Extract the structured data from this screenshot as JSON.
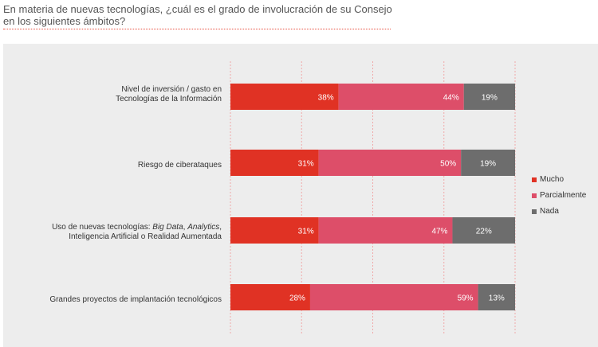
{
  "header": {
    "title": "En materia de nuevas tecnologías, ¿cuál es el grado de involucración de su Consejo en los siguientes ámbitos?"
  },
  "chart_data": {
    "type": "bar",
    "orientation": "horizontal",
    "stacked": true,
    "title": "En materia de nuevas tecnologías, ¿cuál es el grado de involucración de su Consejo en los siguientes ámbitos?",
    "categories": [
      {
        "lines": [
          "Nivel de inversión / gasto en",
          "Tecnologías de la Información"
        ]
      },
      {
        "lines": [
          "Riesgo de ciberataques"
        ]
      },
      {
        "lines": [
          "Uso de nuevas tecnologías: ",
          "Big Data",
          ", ",
          "Analytics",
          ",",
          "Inteligencia Artificial o Realidad Aumentada"
        ]
      },
      {
        "lines": [
          "Grandes proyectos de implantación tecnológicos"
        ]
      }
    ],
    "series": [
      {
        "name": "Mucho",
        "color": "#e03224",
        "values": [
          38,
          31,
          31,
          28
        ],
        "labels": [
          "38%",
          "31%",
          "31%",
          "28%"
        ]
      },
      {
        "name": "Parcialmente",
        "color": "#dd4e69",
        "values": [
          44,
          50,
          47,
          59
        ],
        "labels": [
          "44%",
          "50%",
          "47%",
          "59%"
        ]
      },
      {
        "name": "Nada",
        "color": "#6d6d6d",
        "values": [
          19,
          19,
          22,
          13
        ],
        "labels": [
          "19%",
          "19%",
          "22%",
          "13%"
        ]
      }
    ],
    "xlim": [
      0,
      100
    ],
    "gridlines": true,
    "legend_position": "right"
  }
}
